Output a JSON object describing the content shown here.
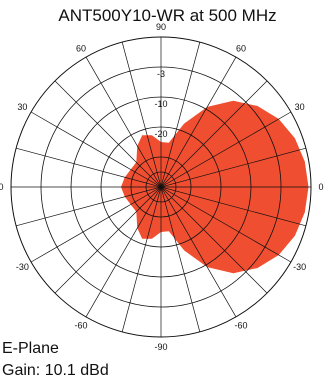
{
  "chart_data": {
    "type": "polar",
    "title": "ANT500Y10-WR at 500 MHz",
    "plane": "E-Plane",
    "gain_label": "Gain: 10.1 dBd",
    "angle_ticks": [
      "90",
      "60",
      "60",
      "30",
      "30",
      "0",
      "0",
      "-30",
      "-30",
      "-60",
      "-60",
      "-90"
    ],
    "radial_labels": [
      "-3",
      "-10",
      "-20"
    ],
    "series_color": "#f04e30",
    "series": [
      {
        "name": "",
        "points": [
          {
            "angle_deg": 0,
            "db": -0.5
          },
          {
            "angle_deg": 10,
            "db": -0.8
          },
          {
            "angle_deg": 20,
            "db": -1.5
          },
          {
            "angle_deg": 30,
            "db": -2.8
          },
          {
            "angle_deg": 40,
            "db": -4.8
          },
          {
            "angle_deg": 50,
            "db": -7.5
          },
          {
            "angle_deg": 60,
            "db": -11.5
          },
          {
            "angle_deg": 70,
            "db": -16.5
          },
          {
            "angle_deg": 80,
            "db": -21
          },
          {
            "angle_deg": 90,
            "db": -21
          },
          {
            "angle_deg": 100,
            "db": -19.5
          },
          {
            "angle_deg": 110,
            "db": -19
          },
          {
            "angle_deg": 120,
            "db": -20.5
          },
          {
            "angle_deg": 135,
            "db": -23
          },
          {
            "angle_deg": 150,
            "db": -23
          },
          {
            "angle_deg": 165,
            "db": -22.5
          },
          {
            "angle_deg": 180,
            "db": -22
          }
        ]
      }
    ]
  }
}
